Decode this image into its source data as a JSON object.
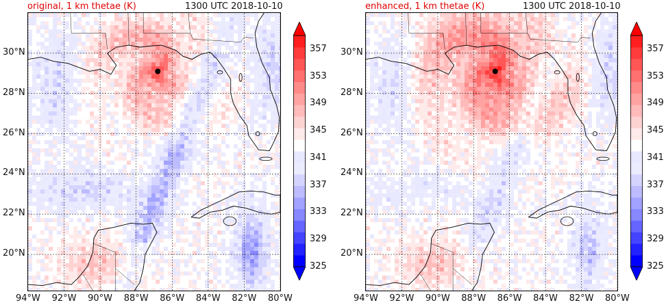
{
  "panels": [
    {
      "title": "original, 1 km thetae (K)",
      "time": "1300 UTC 2018-10-10",
      "variant": "original"
    },
    {
      "title": "enhanced, 1 km thetae (K)",
      "time": "1300 UTC 2018-10-10",
      "variant": "enhanced"
    }
  ],
  "axes": {
    "lon_range": [
      -94,
      -80
    ],
    "lat_range": [
      18.2,
      32.0
    ],
    "lon_ticks": [
      -94,
      -92,
      -90,
      -88,
      -86,
      -84,
      -82,
      -80
    ],
    "lon_tick_labels": [
      "94°W",
      "92°W",
      "90°W",
      "88°W",
      "86°W",
      "84°W",
      "82°W",
      "80°W"
    ],
    "lat_ticks": [
      20,
      22,
      24,
      26,
      28,
      30
    ],
    "lat_tick_labels": [
      "20°N",
      "22°N",
      "24°N",
      "26°N",
      "28°N",
      "30°N"
    ],
    "grid": true
  },
  "colorbar": {
    "min": 325,
    "max": 359,
    "step": 2,
    "labels": [
      "357",
      "353",
      "349",
      "345",
      "341",
      "337",
      "333",
      "329",
      "325"
    ],
    "extend": "both",
    "colors_low": [
      "#0000ff",
      "#2222ff",
      "#4444ff",
      "#6666ff",
      "#8888ff",
      "#a2a2ff",
      "#bcbcff",
      "#d4d4ff",
      "#ececff"
    ],
    "colors_high": [
      "#ffeaea",
      "#ffd2d2",
      "#ffbaba",
      "#ffa2a2",
      "#ff8a8a",
      "#ff7070",
      "#ff5656",
      "#ff3c3c",
      "#ff1e1e"
    ],
    "neutral": "#ffffff"
  },
  "storm_center": {
    "lon": -86.8,
    "lat": 29.1
  },
  "marker_color": "#000000"
}
